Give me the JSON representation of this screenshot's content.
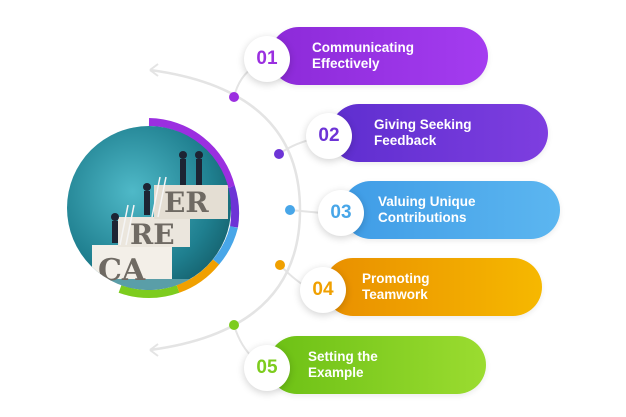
{
  "image_text": [
    "CA",
    "RE",
    "ER"
  ],
  "items": [
    {
      "number": "01",
      "label": "Communicating\nEffectively",
      "color": "#9b2fe0"
    },
    {
      "number": "02",
      "label": "Giving Seeking\nFeedback",
      "color": "#6d34d6"
    },
    {
      "number": "03",
      "label": "Valuing Unique\nContributions",
      "color": "#48a6e8"
    },
    {
      "number": "04",
      "label": "Promoting\nTeamwork",
      "color": "#f0a000"
    },
    {
      "number": "05",
      "label": "Setting the\nExample",
      "color": "#7dcc1e"
    }
  ]
}
